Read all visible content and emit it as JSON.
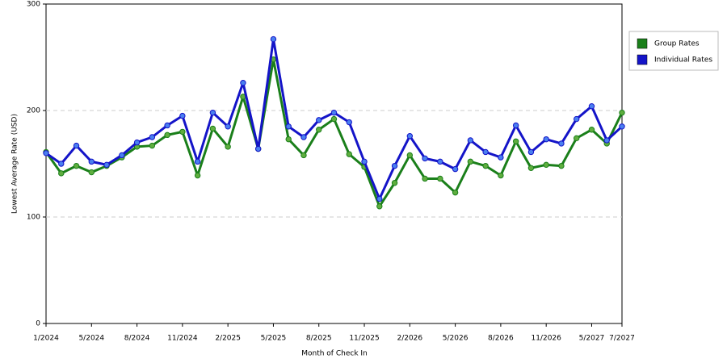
{
  "chart_data": {
    "type": "line",
    "x_label": "Month of Check In",
    "y_label": "Lowest Average Rate (USD)",
    "categories": [
      "1/2024",
      null,
      null,
      "5/2024",
      null,
      null,
      "8/2024",
      null,
      null,
      "11/2024",
      null,
      null,
      "2/2025",
      null,
      null,
      "5/2025",
      null,
      null,
      "8/2025",
      null,
      null,
      "11/2025",
      null,
      null,
      "2/2026",
      null,
      null,
      "5/2026",
      null,
      null,
      "8/2026",
      null,
      null,
      "11/2026",
      null,
      null,
      "5/2027",
      null,
      "7/2027"
    ],
    "series": [
      {
        "name": "Group Rates",
        "color": "#1a7f1a",
        "marker_color": "#5fae3f",
        "values": [
          161,
          141,
          148,
          142,
          148,
          156,
          166,
          167,
          177,
          180,
          139,
          183,
          166,
          213,
          164,
          248,
          173,
          158,
          182,
          192,
          159,
          147,
          110,
          132,
          158,
          136,
          136,
          123,
          152,
          148,
          139,
          171,
          146,
          149,
          148,
          174,
          182,
          169,
          198
        ]
      },
      {
        "name": "Individual Rates",
        "color": "#1414c8",
        "marker_color": "#4a7ff0",
        "values": [
          160,
          150,
          167,
          152,
          149,
          158,
          170,
          175,
          186,
          195,
          152,
          198,
          185,
          226,
          164,
          267,
          185,
          175,
          191,
          198,
          189,
          152,
          117,
          148,
          176,
          155,
          152,
          145,
          172,
          161,
          156,
          186,
          161,
          173,
          169,
          192,
          204,
          172,
          185
        ]
      }
    ],
    "ylim": [
      0,
      300
    ],
    "yticks": [
      0,
      100,
      200,
      300
    ],
    "grid": true,
    "legend": "right"
  }
}
